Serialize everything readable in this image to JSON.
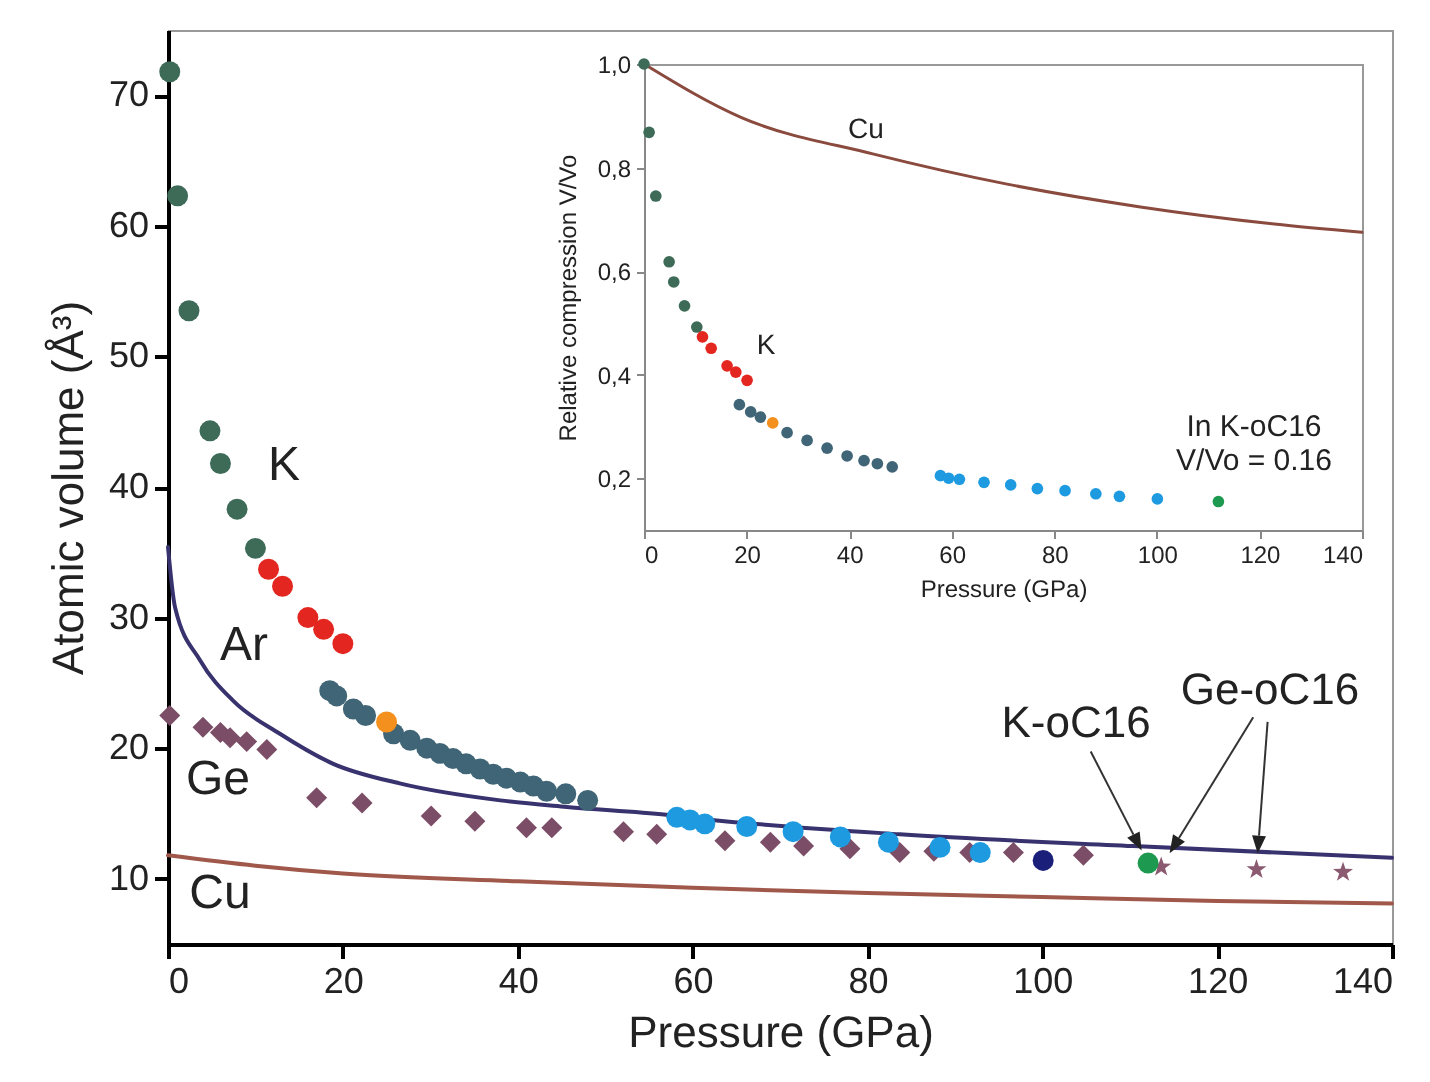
{
  "chart_data": [
    {
      "type": "scatter",
      "xlabel": "Pressure (GPa)",
      "ylabel": "Atomic volume (Å³)",
      "xlim": [
        0,
        140
      ],
      "xticks": [
        0,
        20,
        40,
        60,
        80,
        100,
        120,
        140
      ],
      "ylim": [
        5,
        75
      ],
      "yticks": [
        10,
        20,
        30,
        40,
        50,
        60,
        70
      ],
      "series": [
        {
          "type": "line",
          "color": "#a0584a",
          "x": [
            0,
            10,
            20,
            40,
            60,
            80,
            100,
            120,
            140
          ],
          "values": [
            11.8,
            11.0,
            10.4,
            9.8,
            9.3,
            8.9,
            8.6,
            8.3,
            8.1
          ]
        },
        {
          "type": "line",
          "color": "#38336e",
          "x": [
            0,
            0.8,
            3.7,
            7.5,
            12.8,
            18.9,
            26.5,
            38,
            45.6,
            57,
            60.9,
            83.7,
            110.4,
            140
          ],
          "values": [
            35.4,
            30.8,
            26.7,
            23.6,
            21.1,
            18.8,
            17.3,
            16.0,
            15.5,
            14.9,
            14.6,
            13.4,
            12.5,
            11.6
          ]
        },
        {
          "color": "#7b4d66",
          "marker": "diamond",
          "x": [
            0.2,
            4.0,
            6.0,
            7.1,
            9.0,
            11.3,
            17.0,
            22.2,
            30.1,
            35.1,
            41.0,
            43.9,
            52.1,
            55.9,
            63.7,
            68.9,
            72.7,
            78.0,
            83.7,
            87.6,
            91.7,
            96.7,
            104.7
          ],
          "values": [
            22.5,
            21.6,
            21.2,
            20.8,
            20.5,
            19.9,
            16.2,
            15.8,
            14.8,
            14.4,
            13.9,
            13.9,
            13.6,
            13.4,
            12.9,
            12.8,
            12.5,
            12.3,
            12.0,
            12.1,
            12.0,
            12.0,
            11.8
          ]
        },
        {
          "color": "#8b5a70",
          "marker": "star",
          "x": [
            113.6,
            124.5,
            134.4
          ],
          "values": [
            10.9,
            10.7,
            10.5
          ]
        },
        {
          "color": "#3d6b58",
          "marker": "circle",
          "x": [
            0.2,
            1.1,
            2.4,
            4.8,
            6.0,
            7.9,
            10.0
          ],
          "values": [
            71.8,
            62.3,
            53.5,
            44.3,
            41.8,
            38.3,
            35.3
          ]
        },
        {
          "color": "#e3261f",
          "marker": "circle",
          "x": [
            11.5,
            13.1,
            16.0,
            17.8,
            20.0
          ],
          "values": [
            33.7,
            32.4,
            30.0,
            29.1,
            28.0
          ]
        },
        {
          "color": "#3f6577",
          "marker": "circle",
          "x": [
            18.5,
            19.3,
            21.2,
            22.6,
            25.8,
            27.7,
            29.6,
            31.1,
            32.6,
            34.1,
            35.7,
            37.2,
            38.7,
            40.3,
            41.8,
            43.3,
            45.5,
            48.0
          ],
          "values": [
            24.4,
            24.0,
            23.0,
            22.5,
            21.1,
            20.6,
            20.0,
            19.6,
            19.2,
            18.8,
            18.4,
            18.0,
            17.7,
            17.4,
            17.1,
            16.7,
            16.5,
            16.0
          ]
        },
        {
          "color": "#f3901e",
          "marker": "circle",
          "x": [
            25.0
          ],
          "values": [
            22.0
          ]
        },
        {
          "color": "#1d9ae0",
          "marker": "circle",
          "x": [
            58.2,
            59.7,
            61.4,
            66.2,
            71.5,
            76.9,
            82.4,
            88.3,
            92.9
          ],
          "values": [
            14.7,
            14.5,
            14.2,
            14.0,
            13.6,
            13.2,
            12.8,
            12.4,
            12.0
          ]
        },
        {
          "color": "#1a1f7a",
          "marker": "circle",
          "x": [
            100.1
          ],
          "values": [
            11.4
          ]
        },
        {
          "color": "#1e9a50",
          "marker": "circle",
          "x": [
            112.1
          ],
          "values": [
            11.2
          ]
        }
      ],
      "annotations": [
        "K",
        "Ar",
        "Ge",
        "Cu",
        {
          "text": "K-oC16",
          "x": 112.1,
          "y": 11.2
        },
        "Ge-oC16"
      ]
    },
    {
      "type": "scatter",
      "xlabel": "Pressure (GPa)",
      "ylabel": "Relative compression V/Vo",
      "xlim": [
        0,
        140
      ],
      "xticks": [
        0,
        20,
        40,
        60,
        80,
        100,
        120,
        140
      ],
      "ylim": [
        0.1,
        1.0
      ],
      "yticks": [
        {
          "value": 0.2,
          "label": "0,2"
        },
        {
          "value": 0.4,
          "label": "0,4"
        },
        {
          "value": 0.6,
          "label": "0,6"
        },
        {
          "value": 0.8,
          "label": "0,8"
        },
        {
          "value": 1.0,
          "label": "1,0"
        }
      ],
      "series": [
        {
          "type": "line",
          "color": "#8a4a3e",
          "x": [
            0,
            18.9,
            44.8,
            70.8,
            96.8,
            122.9,
            140
          ],
          "values": [
            1.0,
            0.897,
            0.826,
            0.768,
            0.724,
            0.691,
            0.675
          ]
        },
        {
          "color": "#3d6b58",
          "marker": "circle",
          "x": [
            0,
            1.0,
            2.3,
            4.9,
            5.8,
            7.9,
            10.3
          ],
          "values": [
            1.0,
            0.868,
            0.745,
            0.618,
            0.579,
            0.533,
            0.492
          ]
        },
        {
          "color": "#e3261f",
          "marker": "circle",
          "x": [
            11.4,
            13.1,
            16.2,
            17.9,
            20.1
          ],
          "values": [
            0.473,
            0.451,
            0.417,
            0.405,
            0.389
          ]
        },
        {
          "color": "#3f6577",
          "marker": "circle",
          "x": [
            18.6,
            20.8,
            22.7,
            27.9,
            31.8,
            35.7,
            39.6,
            42.9,
            45.5,
            48.4
          ],
          "values": [
            0.342,
            0.328,
            0.318,
            0.288,
            0.273,
            0.258,
            0.243,
            0.234,
            0.228,
            0.222
          ]
        },
        {
          "color": "#f3901e",
          "marker": "circle",
          "x": [
            25.1
          ],
          "values": [
            0.307
          ]
        },
        {
          "color": "#1d9ae0",
          "marker": "circle",
          "x": [
            57.8,
            59.4,
            61.5,
            66.3,
            71.5,
            76.7,
            82.1,
            88.1,
            92.7,
            100.1
          ],
          "values": [
            0.205,
            0.2,
            0.198,
            0.192,
            0.187,
            0.18,
            0.176,
            0.17,
            0.165,
            0.16
          ]
        },
        {
          "color": "#1e9a50",
          "marker": "circle",
          "x": [
            112.0
          ],
          "values": [
            0.155
          ]
        }
      ],
      "annotations": [
        "Cu",
        "K",
        "In K-oC16\nV/Vo = 0.16"
      ]
    }
  ]
}
